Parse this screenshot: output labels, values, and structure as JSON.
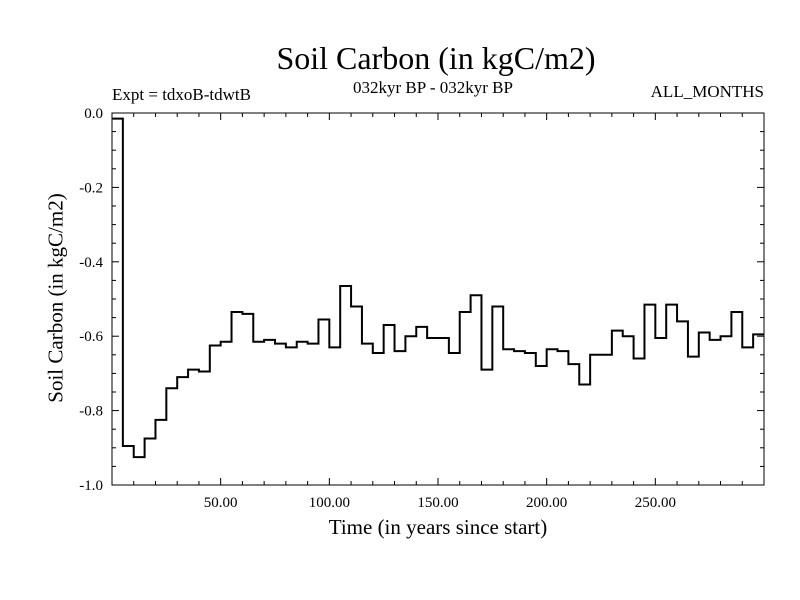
{
  "chart_data": {
    "type": "line",
    "title": "Soil Carbon (in kgC/m2)",
    "subtitle": "032kyr BP - 032kyr BP",
    "annotation_left": "Expt = tdxoB-tdwtB",
    "annotation_right": "ALL_MONTHS",
    "xlabel": "Time (in years since start)",
    "ylabel": "Soil Carbon (in kgC/m2)",
    "xlim": [
      0,
      300
    ],
    "ylim": [
      -1.0,
      0.0
    ],
    "xticks": [
      50,
      100,
      150,
      200,
      250
    ],
    "xtick_labels": [
      "50.00",
      "100.00",
      "150.00",
      "200.00",
      "250.00"
    ],
    "yticks": [
      0.0,
      -0.2,
      -0.4,
      -0.6,
      -0.8,
      -1.0
    ],
    "ytick_labels": [
      "0.0",
      "-0.2",
      "-0.4",
      "-0.6",
      "-0.8",
      "-1.0"
    ],
    "step": "pre",
    "series": [
      {
        "x": [
          0,
          5,
          10,
          15,
          20,
          25,
          30,
          35,
          40,
          45,
          50,
          55,
          60,
          65,
          70,
          75,
          80,
          85,
          90,
          95,
          100,
          105,
          110,
          115,
          120,
          125,
          130,
          135,
          140,
          145,
          150,
          155,
          160,
          165,
          170,
          175,
          180,
          185,
          190,
          195,
          200,
          205,
          210,
          215,
          220,
          225,
          230,
          235,
          240,
          245,
          250,
          255,
          260,
          265,
          270,
          275,
          280,
          285,
          290,
          295,
          300
        ],
        "y": [
          -0.015,
          -0.015,
          -0.895,
          -0.925,
          -0.875,
          -0.825,
          -0.74,
          -0.71,
          -0.69,
          -0.695,
          -0.625,
          -0.615,
          -0.535,
          -0.54,
          -0.615,
          -0.61,
          -0.62,
          -0.63,
          -0.615,
          -0.62,
          -0.555,
          -0.63,
          -0.465,
          -0.52,
          -0.62,
          -0.645,
          -0.57,
          -0.64,
          -0.6,
          -0.575,
          -0.605,
          -0.605,
          -0.645,
          -0.535,
          -0.49,
          -0.69,
          -0.52,
          -0.635,
          -0.64,
          -0.645,
          -0.68,
          -0.635,
          -0.64,
          -0.675,
          -0.73,
          -0.65,
          -0.65,
          -0.585,
          -0.6,
          -0.66,
          -0.515,
          -0.605,
          -0.515,
          -0.56,
          -0.655,
          -0.59,
          -0.61,
          -0.6,
          -0.535,
          -0.63,
          -0.595
        ]
      }
    ]
  }
}
